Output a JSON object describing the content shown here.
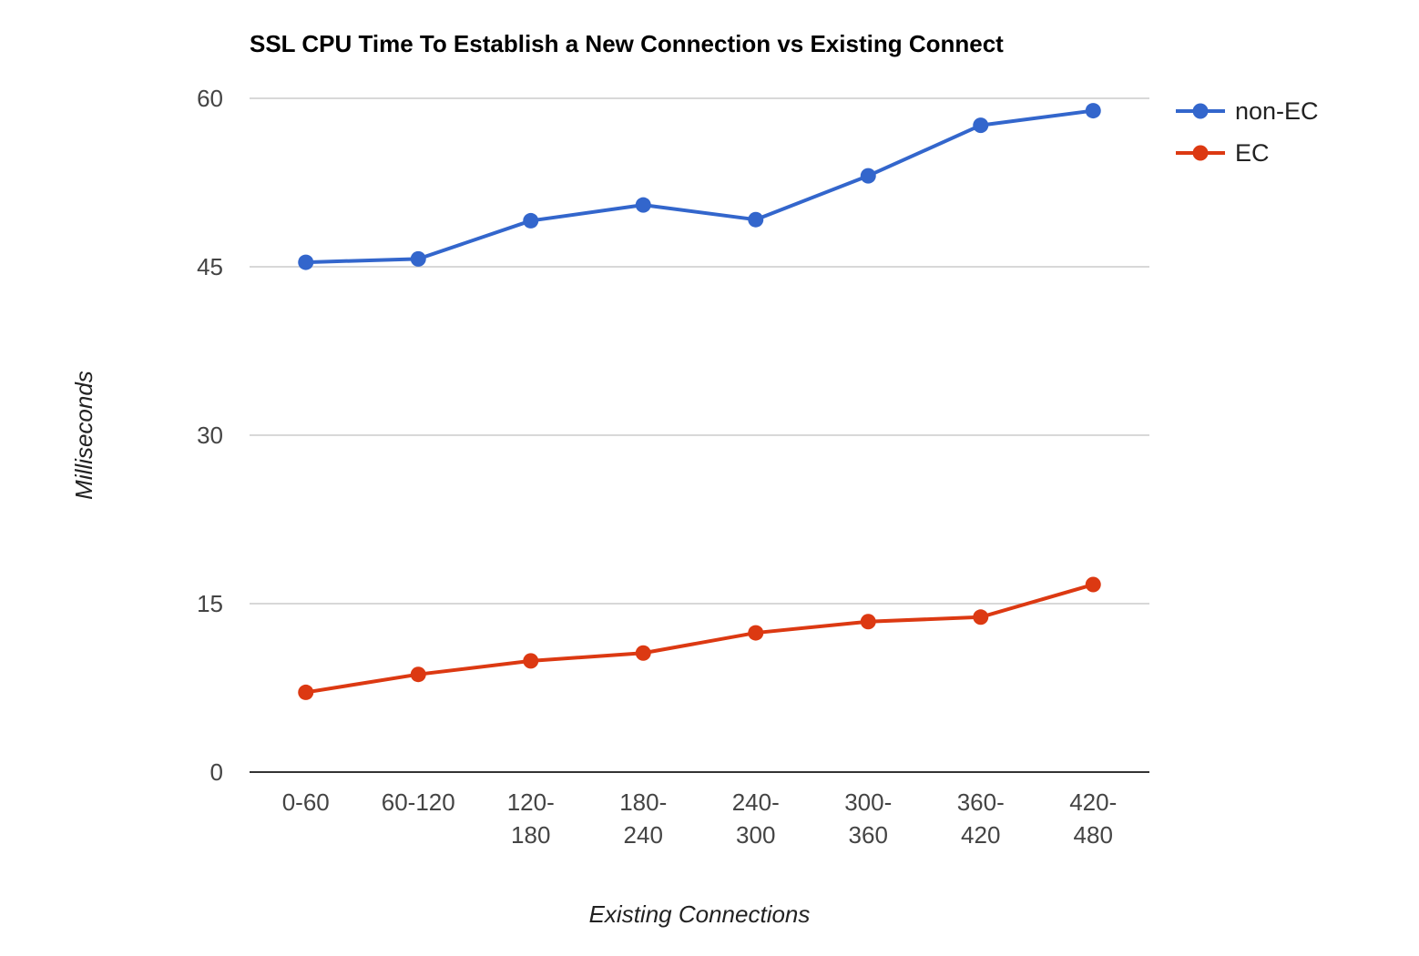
{
  "chart_data": {
    "type": "line",
    "title": "SSL CPU Time To Establish a New Connection vs Existing Connect",
    "xlabel": "Existing Connections",
    "ylabel": "Milliseconds",
    "categories": [
      "0-60",
      "60-120",
      "120-180",
      "180-240",
      "240-300",
      "300-360",
      "360-420",
      "420-480"
    ],
    "category_labels": [
      [
        "0-60"
      ],
      [
        "60-120"
      ],
      [
        "120-",
        "180"
      ],
      [
        "180-",
        "240"
      ],
      [
        "240-",
        "300"
      ],
      [
        "300-",
        "360"
      ],
      [
        "360-",
        "420"
      ],
      [
        "420-",
        "480"
      ]
    ],
    "yticks": [
      0,
      15,
      30,
      45,
      60
    ],
    "ylim": [
      0,
      60
    ],
    "grid": true,
    "legend_position": "right",
    "series": [
      {
        "name": "non-EC",
        "color": "#3366cc",
        "values": [
          45.4,
          45.7,
          49.1,
          50.5,
          49.2,
          53.1,
          57.6,
          58.9
        ]
      },
      {
        "name": "EC",
        "color": "#dc3912",
        "values": [
          7.1,
          8.7,
          9.9,
          10.6,
          12.4,
          13.4,
          13.8,
          16.7
        ]
      }
    ]
  }
}
